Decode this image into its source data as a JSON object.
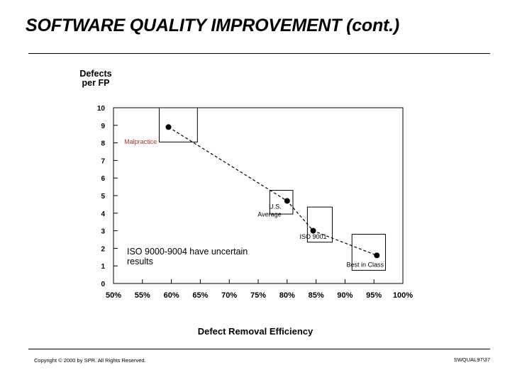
{
  "slide": {
    "title": "SOFTWARE QUALITY IMPROVEMENT (cont.)",
    "footer_left": "Copyright © 2000 by SPR. All Rights Reserved.",
    "footer_right": "SWQUAL97\\37"
  },
  "chart_data": {
    "type": "scatter",
    "ylabel": "Defects\nper FP",
    "xlabel": "Defect Removal Efficiency",
    "x_ticks": [
      "50%",
      "55%",
      "60%",
      "65%",
      "70%",
      "75%",
      "80%",
      "85%",
      "90%",
      "95%",
      "100%"
    ],
    "y_ticks": [
      "0",
      "1",
      "2",
      "3",
      "4",
      "5",
      "6",
      "7",
      "8",
      "9",
      "10"
    ],
    "xlim": [
      50,
      100
    ],
    "ylim": [
      0,
      10
    ],
    "grid": false,
    "points": [
      {
        "label": "Malpractice",
        "x": 59.5,
        "y": 8.9
      },
      {
        "label": "U.S.\nAverage",
        "x": 80.0,
        "y": 4.7
      },
      {
        "label": "ISO 9001",
        "x": 84.5,
        "y": 3.0
      },
      {
        "label": "Best in Class",
        "x": 95.5,
        "y": 1.6
      }
    ],
    "trend_line": [
      [
        59.5,
        8.9
      ],
      [
        80.0,
        4.7
      ],
      [
        84.5,
        3.0
      ],
      [
        95.5,
        1.6
      ]
    ],
    "annotation": "ISO 9000-9004 have uncertain\nresults",
    "label_colors": {
      "malpractice": "#b03030",
      "default": "#000000"
    }
  }
}
